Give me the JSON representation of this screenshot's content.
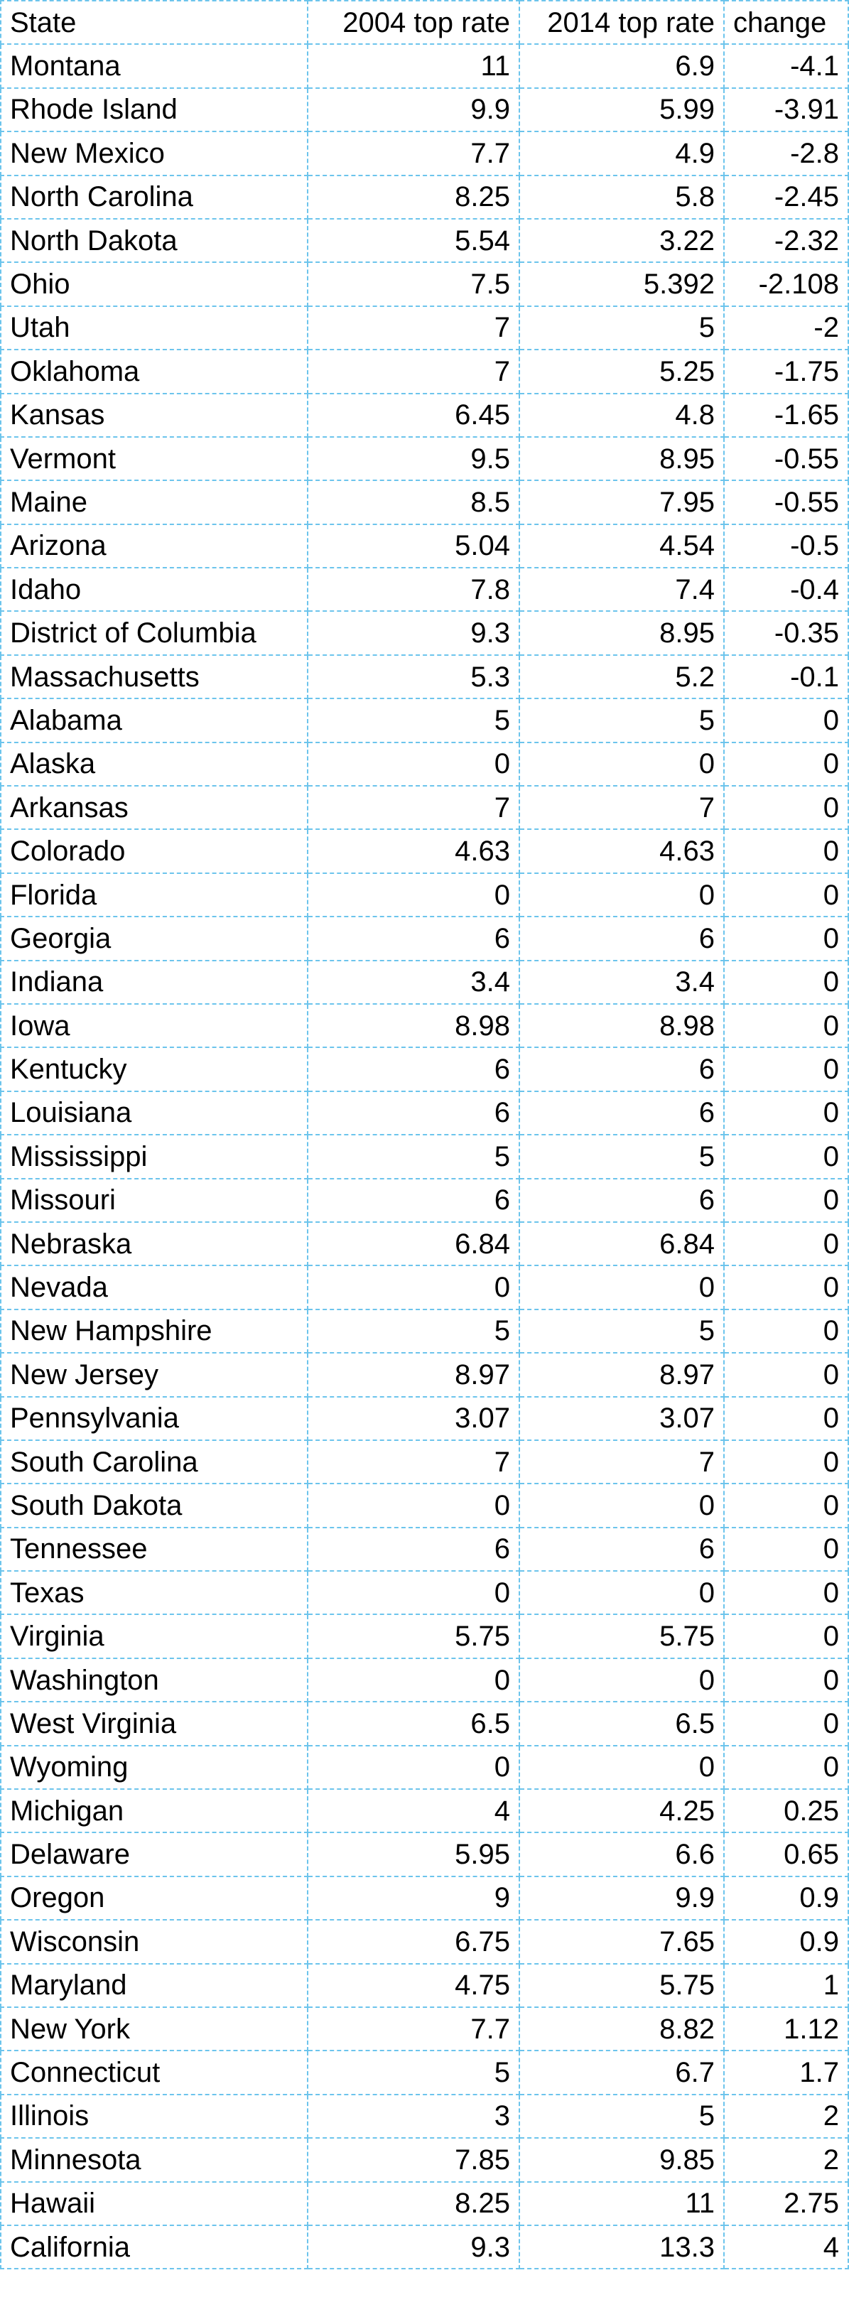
{
  "table": {
    "headers": {
      "state": "State",
      "rate_2004": "2004 top rate",
      "rate_2014": "2014 top rate",
      "change": "change"
    },
    "rows": [
      {
        "state": "Montana",
        "rate_2004": "11",
        "rate_2014": "6.9",
        "change": "-4.1"
      },
      {
        "state": "Rhode Island",
        "rate_2004": "9.9",
        "rate_2014": "5.99",
        "change": "-3.91"
      },
      {
        "state": "New Mexico",
        "rate_2004": "7.7",
        "rate_2014": "4.9",
        "change": "-2.8"
      },
      {
        "state": "North Carolina",
        "rate_2004": "8.25",
        "rate_2014": "5.8",
        "change": "-2.45"
      },
      {
        "state": "North Dakota",
        "rate_2004": "5.54",
        "rate_2014": "3.22",
        "change": "-2.32"
      },
      {
        "state": "Ohio",
        "rate_2004": "7.5",
        "rate_2014": "5.392",
        "change": "-2.108"
      },
      {
        "state": "Utah",
        "rate_2004": "7",
        "rate_2014": "5",
        "change": "-2"
      },
      {
        "state": "Oklahoma",
        "rate_2004": "7",
        "rate_2014": "5.25",
        "change": "-1.75"
      },
      {
        "state": "Kansas",
        "rate_2004": "6.45",
        "rate_2014": "4.8",
        "change": "-1.65"
      },
      {
        "state": "Vermont",
        "rate_2004": "9.5",
        "rate_2014": "8.95",
        "change": "-0.55"
      },
      {
        "state": "Maine",
        "rate_2004": "8.5",
        "rate_2014": "7.95",
        "change": "-0.55"
      },
      {
        "state": "Arizona",
        "rate_2004": "5.04",
        "rate_2014": "4.54",
        "change": "-0.5"
      },
      {
        "state": "Idaho",
        "rate_2004": "7.8",
        "rate_2014": "7.4",
        "change": "-0.4"
      },
      {
        "state": "District of Columbia",
        "rate_2004": "9.3",
        "rate_2014": "8.95",
        "change": "-0.35"
      },
      {
        "state": "Massachusetts",
        "rate_2004": "5.3",
        "rate_2014": "5.2",
        "change": "-0.1"
      },
      {
        "state": "Alabama",
        "rate_2004": "5",
        "rate_2014": "5",
        "change": "0"
      },
      {
        "state": "Alaska",
        "rate_2004": "0",
        "rate_2014": "0",
        "change": "0"
      },
      {
        "state": "Arkansas",
        "rate_2004": "7",
        "rate_2014": "7",
        "change": "0"
      },
      {
        "state": "Colorado",
        "rate_2004": "4.63",
        "rate_2014": "4.63",
        "change": "0"
      },
      {
        "state": "Florida",
        "rate_2004": "0",
        "rate_2014": "0",
        "change": "0"
      },
      {
        "state": "Georgia",
        "rate_2004": "6",
        "rate_2014": "6",
        "change": "0"
      },
      {
        "state": "Indiana",
        "rate_2004": "3.4",
        "rate_2014": "3.4",
        "change": "0"
      },
      {
        "state": "Iowa",
        "rate_2004": "8.98",
        "rate_2014": "8.98",
        "change": "0"
      },
      {
        "state": "Kentucky",
        "rate_2004": "6",
        "rate_2014": "6",
        "change": "0"
      },
      {
        "state": "Louisiana",
        "rate_2004": "6",
        "rate_2014": "6",
        "change": "0"
      },
      {
        "state": "Mississippi",
        "rate_2004": "5",
        "rate_2014": "5",
        "change": "0"
      },
      {
        "state": "Missouri",
        "rate_2004": "6",
        "rate_2014": "6",
        "change": "0"
      },
      {
        "state": "Nebraska",
        "rate_2004": "6.84",
        "rate_2014": "6.84",
        "change": "0"
      },
      {
        "state": "Nevada",
        "rate_2004": "0",
        "rate_2014": "0",
        "change": "0"
      },
      {
        "state": "New Hampshire",
        "rate_2004": "5",
        "rate_2014": "5",
        "change": "0"
      },
      {
        "state": "New Jersey",
        "rate_2004": "8.97",
        "rate_2014": "8.97",
        "change": "0"
      },
      {
        "state": "Pennsylvania",
        "rate_2004": "3.07",
        "rate_2014": "3.07",
        "change": "0"
      },
      {
        "state": "South Carolina",
        "rate_2004": "7",
        "rate_2014": "7",
        "change": "0"
      },
      {
        "state": "South Dakota",
        "rate_2004": "0",
        "rate_2014": "0",
        "change": "0"
      },
      {
        "state": "Tennessee",
        "rate_2004": "6",
        "rate_2014": "6",
        "change": "0"
      },
      {
        "state": "Texas",
        "rate_2004": "0",
        "rate_2014": "0",
        "change": "0"
      },
      {
        "state": "Virginia",
        "rate_2004": "5.75",
        "rate_2014": "5.75",
        "change": "0"
      },
      {
        "state": "Washington",
        "rate_2004": "0",
        "rate_2014": "0",
        "change": "0"
      },
      {
        "state": "West Virginia",
        "rate_2004": "6.5",
        "rate_2014": "6.5",
        "change": "0"
      },
      {
        "state": "Wyoming",
        "rate_2004": "0",
        "rate_2014": "0",
        "change": "0"
      },
      {
        "state": "Michigan",
        "rate_2004": "4",
        "rate_2014": "4.25",
        "change": "0.25"
      },
      {
        "state": "Delaware",
        "rate_2004": "5.95",
        "rate_2014": "6.6",
        "change": "0.65"
      },
      {
        "state": "Oregon",
        "rate_2004": "9",
        "rate_2014": "9.9",
        "change": "0.9"
      },
      {
        "state": "Wisconsin",
        "rate_2004": "6.75",
        "rate_2014": "7.65",
        "change": "0.9"
      },
      {
        "state": "Maryland",
        "rate_2004": "4.75",
        "rate_2014": "5.75",
        "change": "1"
      },
      {
        "state": "New York",
        "rate_2004": "7.7",
        "rate_2014": "8.82",
        "change": "1.12"
      },
      {
        "state": "Connecticut",
        "rate_2004": "5",
        "rate_2014": "6.7",
        "change": "1.7"
      },
      {
        "state": "Illinois",
        "rate_2004": "3",
        "rate_2014": "5",
        "change": "2"
      },
      {
        "state": "Minnesota",
        "rate_2004": "7.85",
        "rate_2014": "9.85",
        "change": "2"
      },
      {
        "state": "Hawaii",
        "rate_2004": "8.25",
        "rate_2014": "11",
        "change": "2.75"
      },
      {
        "state": "California",
        "rate_2004": "9.3",
        "rate_2014": "13.3",
        "change": "4"
      }
    ]
  }
}
